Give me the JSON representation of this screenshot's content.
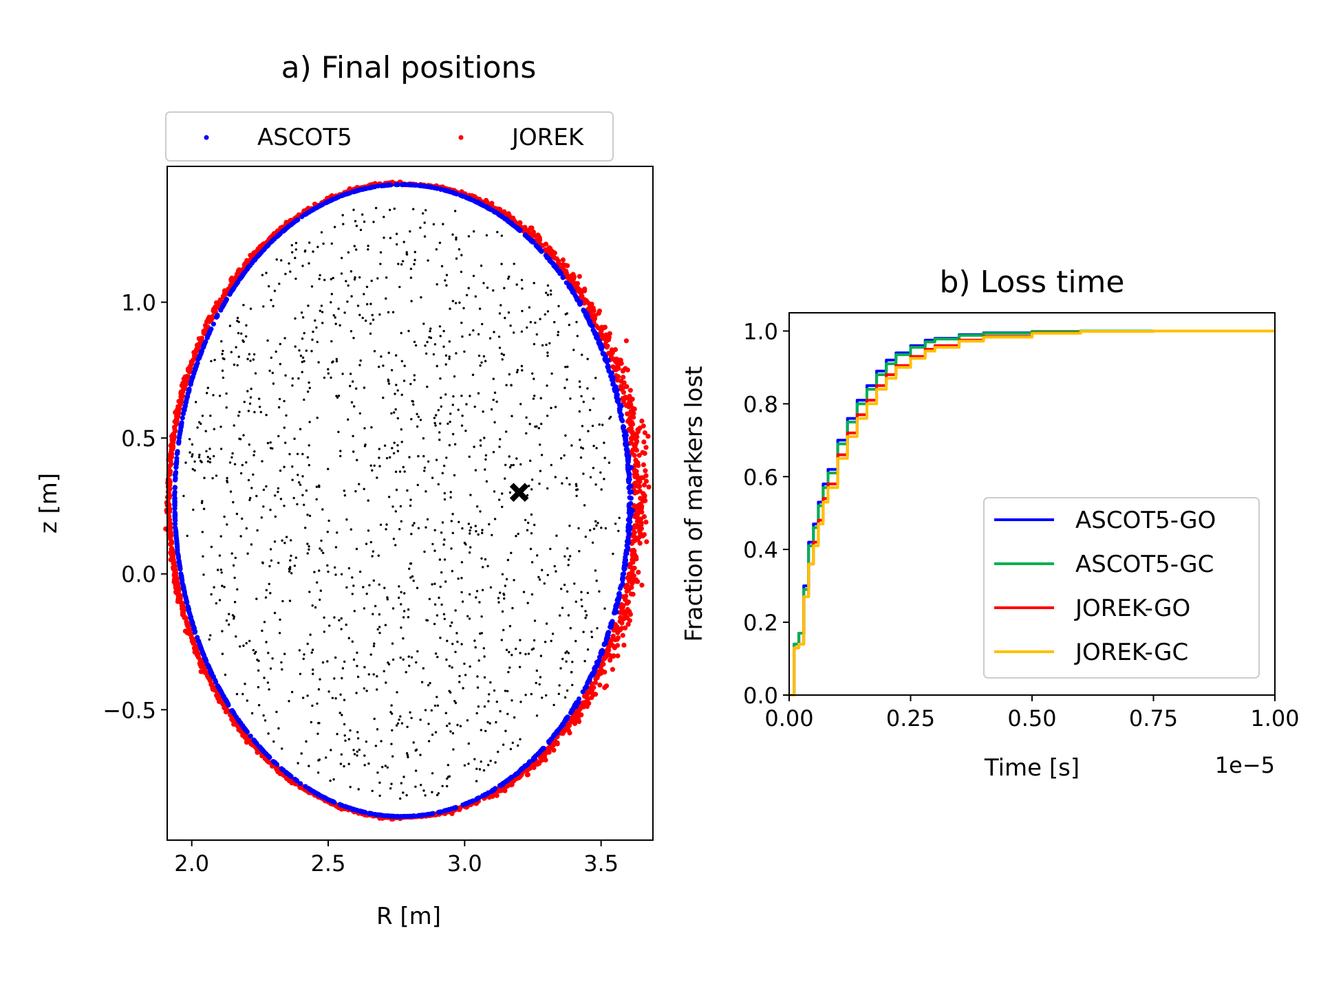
{
  "chart_data": [
    {
      "type": "scatter",
      "title": "a) Final positions",
      "xlabel": "R [m]",
      "ylabel": "z [m]",
      "xlim": [
        1.91,
        3.69
      ],
      "ylim": [
        -0.98,
        1.5
      ],
      "xticks": [
        2.0,
        2.5,
        3.0,
        3.5
      ],
      "xtick_labels": [
        "2.0",
        "2.5",
        "3.0",
        "3.5"
      ],
      "yticks": [
        -0.5,
        0.0,
        0.5,
        1.0
      ],
      "ytick_labels": [
        "−0.5",
        "0.0",
        "0.5",
        "1.0"
      ],
      "legend": {
        "placement": "top",
        "columns": 2
      },
      "series": [
        {
          "name": "ASCOT5",
          "color": "#0000ff",
          "kind": "boundary-ring",
          "ring": {
            "center_R": 2.77,
            "center_z": 0.27,
            "semi_axis_R": 0.85,
            "semi_axis_z": 1.165,
            "inward_shift_R": 0.05
          },
          "count": 1400
        },
        {
          "name": "JOREK",
          "color": "#ff0000",
          "kind": "boundary-ring",
          "ring": {
            "center_R": 2.77,
            "center_z": 0.27,
            "semi_axis_R": 0.85,
            "semi_axis_z": 1.165,
            "inward_shift_R": 0.0
          },
          "count": 2000
        },
        {
          "name": "initial markers",
          "color": "#000000",
          "kind": "interior-cloud",
          "count": 1400,
          "legend": false
        }
      ],
      "annotations": [
        {
          "type": "x-marker",
          "R": 3.2,
          "z": 0.3,
          "color": "#000000"
        }
      ]
    },
    {
      "type": "line",
      "title": "b) Loss time",
      "xlabel": "Time [s]",
      "ylabel": "Fraction of markers lost",
      "x_offset_text": "1e−5",
      "xlim": [
        0.0,
        1.0
      ],
      "ylim": [
        0.0,
        1.05
      ],
      "xticks": [
        0.0,
        0.25,
        0.5,
        0.75,
        1.0
      ],
      "xtick_labels": [
        "0.00",
        "0.25",
        "0.50",
        "0.75",
        "1.00"
      ],
      "yticks": [
        0.0,
        0.2,
        0.4,
        0.6,
        0.8,
        1.0
      ],
      "ytick_labels": [
        "0.0",
        "0.2",
        "0.4",
        "0.6",
        "0.8",
        "1.0"
      ],
      "legend": {
        "placement": "lower-right"
      },
      "x": [
        0.0,
        0.01,
        0.02,
        0.03,
        0.04,
        0.05,
        0.06,
        0.07,
        0.08,
        0.1,
        0.12,
        0.14,
        0.16,
        0.18,
        0.2,
        0.22,
        0.25,
        0.28,
        0.3,
        0.35,
        0.4,
        0.5,
        0.6,
        0.75,
        1.0
      ],
      "series": [
        {
          "name": "ASCOT5-GO",
          "color": "#0000ff",
          "values": [
            0.0,
            0.14,
            0.17,
            0.3,
            0.42,
            0.47,
            0.53,
            0.58,
            0.62,
            0.7,
            0.76,
            0.81,
            0.85,
            0.89,
            0.92,
            0.94,
            0.96,
            0.975,
            0.98,
            0.99,
            0.995,
            0.999,
            1.0,
            1.0,
            1.0
          ]
        },
        {
          "name": "ASCOT5-GC",
          "color": "#00b050",
          "values": [
            0.0,
            0.14,
            0.17,
            0.29,
            0.41,
            0.46,
            0.52,
            0.57,
            0.61,
            0.69,
            0.75,
            0.8,
            0.84,
            0.88,
            0.91,
            0.935,
            0.955,
            0.97,
            0.978,
            0.988,
            0.994,
            0.999,
            1.0,
            1.0,
            1.0
          ]
        },
        {
          "name": "JOREK-GO",
          "color": "#ff0000",
          "values": [
            0.0,
            0.13,
            0.14,
            0.27,
            0.36,
            0.42,
            0.48,
            0.54,
            0.58,
            0.66,
            0.72,
            0.77,
            0.81,
            0.85,
            0.88,
            0.905,
            0.93,
            0.95,
            0.96,
            0.975,
            0.985,
            0.995,
            0.999,
            1.0,
            1.0
          ]
        },
        {
          "name": "JOREK-GC",
          "color": "#ffc000",
          "values": [
            0.0,
            0.13,
            0.14,
            0.27,
            0.36,
            0.41,
            0.47,
            0.53,
            0.57,
            0.65,
            0.71,
            0.76,
            0.8,
            0.84,
            0.87,
            0.9,
            0.925,
            0.945,
            0.955,
            0.972,
            0.983,
            0.994,
            0.999,
            1.0,
            1.0
          ]
        }
      ]
    }
  ]
}
